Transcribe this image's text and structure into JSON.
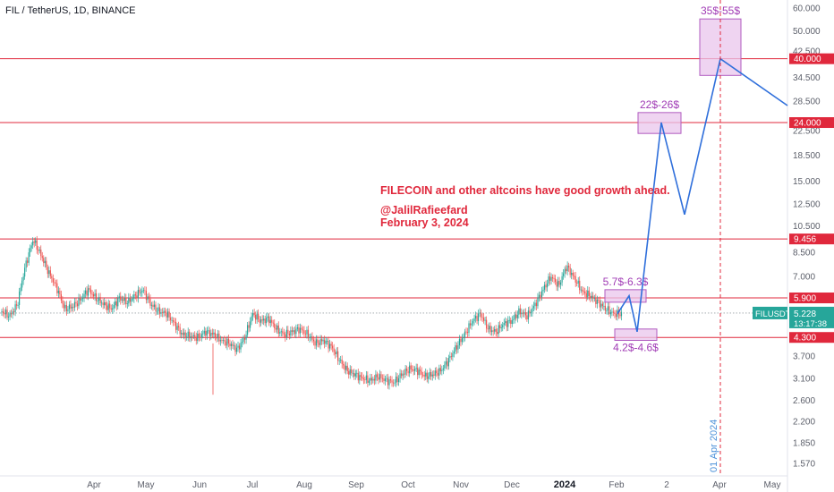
{
  "header": {
    "title": "FIL / TetherUS, 1D, BINANCE"
  },
  "annotation": {
    "line1": "FILECOIN and other altcoins have good growth ahead.",
    "line2": "@JalilRafieefard",
    "line3": "February 3, 2024"
  },
  "colors": {
    "up": "#26a69a",
    "down": "#ef5350",
    "level": "#e0283c",
    "projection": "#2f6fdb",
    "zone_fill": "#e9c5ec",
    "zone_stroke": "#b05bc0",
    "zone_text": "#a03bb5",
    "date_marker": "#e0283c",
    "date_text": "#4a90d9"
  },
  "chart_data": {
    "type": "candlestick",
    "y_scale": "log",
    "ylim": [
      1.42,
      64
    ],
    "y_ticks": [
      "60.000",
      "50.000",
      "42.500",
      "34.500",
      "28.500",
      "22.500",
      "18.500",
      "15.000",
      "12.500",
      "10.500",
      "8.500",
      "7.000",
      "5.800",
      "4.800",
      "3.700",
      "3.100",
      "2.600",
      "2.200",
      "1.850",
      "1.570"
    ],
    "x_ticks": [
      "Apr",
      "May",
      "Jun",
      "Jul",
      "Aug",
      "Sep",
      "Oct",
      "Nov",
      "Dec",
      "2024",
      "Feb",
      "2",
      "Apr",
      "May"
    ],
    "levels": [
      {
        "value": 40.0,
        "label": "40.000"
      },
      {
        "value": 24.0,
        "label": "24.000"
      },
      {
        "value": 9.456,
        "label": "9.456"
      },
      {
        "value": 5.9,
        "label": "5.900"
      },
      {
        "value": 4.3,
        "label": "4.300"
      }
    ],
    "last_price": {
      "symbol": "FILUSDT",
      "value": "5.228",
      "countdown": "13:17:38"
    },
    "target_zones": [
      {
        "label": "35$-55$",
        "low": 35,
        "high": 55
      },
      {
        "label": "22$-26$",
        "low": 22,
        "high": 26
      },
      {
        "label": "5.7$-6.3$",
        "low": 5.7,
        "high": 6.3
      },
      {
        "label": "4.2$-4.6$",
        "low": 4.2,
        "high": 4.6
      }
    ],
    "date_marker": "01 Apr 2024",
    "projection_path": [
      5.2,
      6.0,
      4.5,
      24.0,
      11.5,
      40.0,
      27.5
    ],
    "price_path": [
      5.3,
      5.1,
      5.6,
      7.6,
      9.4,
      8.3,
      7.2,
      6.4,
      5.4,
      5.5,
      5.8,
      6.3,
      5.9,
      5.6,
      5.4,
      5.9,
      5.7,
      6.0,
      6.3,
      5.6,
      5.3,
      5.2,
      4.8,
      4.4,
      4.35,
      4.3,
      4.5,
      4.4,
      4.2,
      4.1,
      3.9,
      4.3,
      5.2,
      4.9,
      5.0,
      4.6,
      4.4,
      4.5,
      4.6,
      4.4,
      4.1,
      4.2,
      4.0,
      3.6,
      3.3,
      3.2,
      3.1,
      3.05,
      3.15,
      3.05,
      3.0,
      3.2,
      3.35,
      3.3,
      3.15,
      3.2,
      3.3,
      3.6,
      4.0,
      4.4,
      4.9,
      5.2,
      4.6,
      4.5,
      4.8,
      4.9,
      5.3,
      5.1,
      5.6,
      6.3,
      7.0,
      6.5,
      7.6,
      6.9,
      6.2,
      6.0,
      5.7,
      5.4,
      5.2,
      5.2
    ]
  }
}
